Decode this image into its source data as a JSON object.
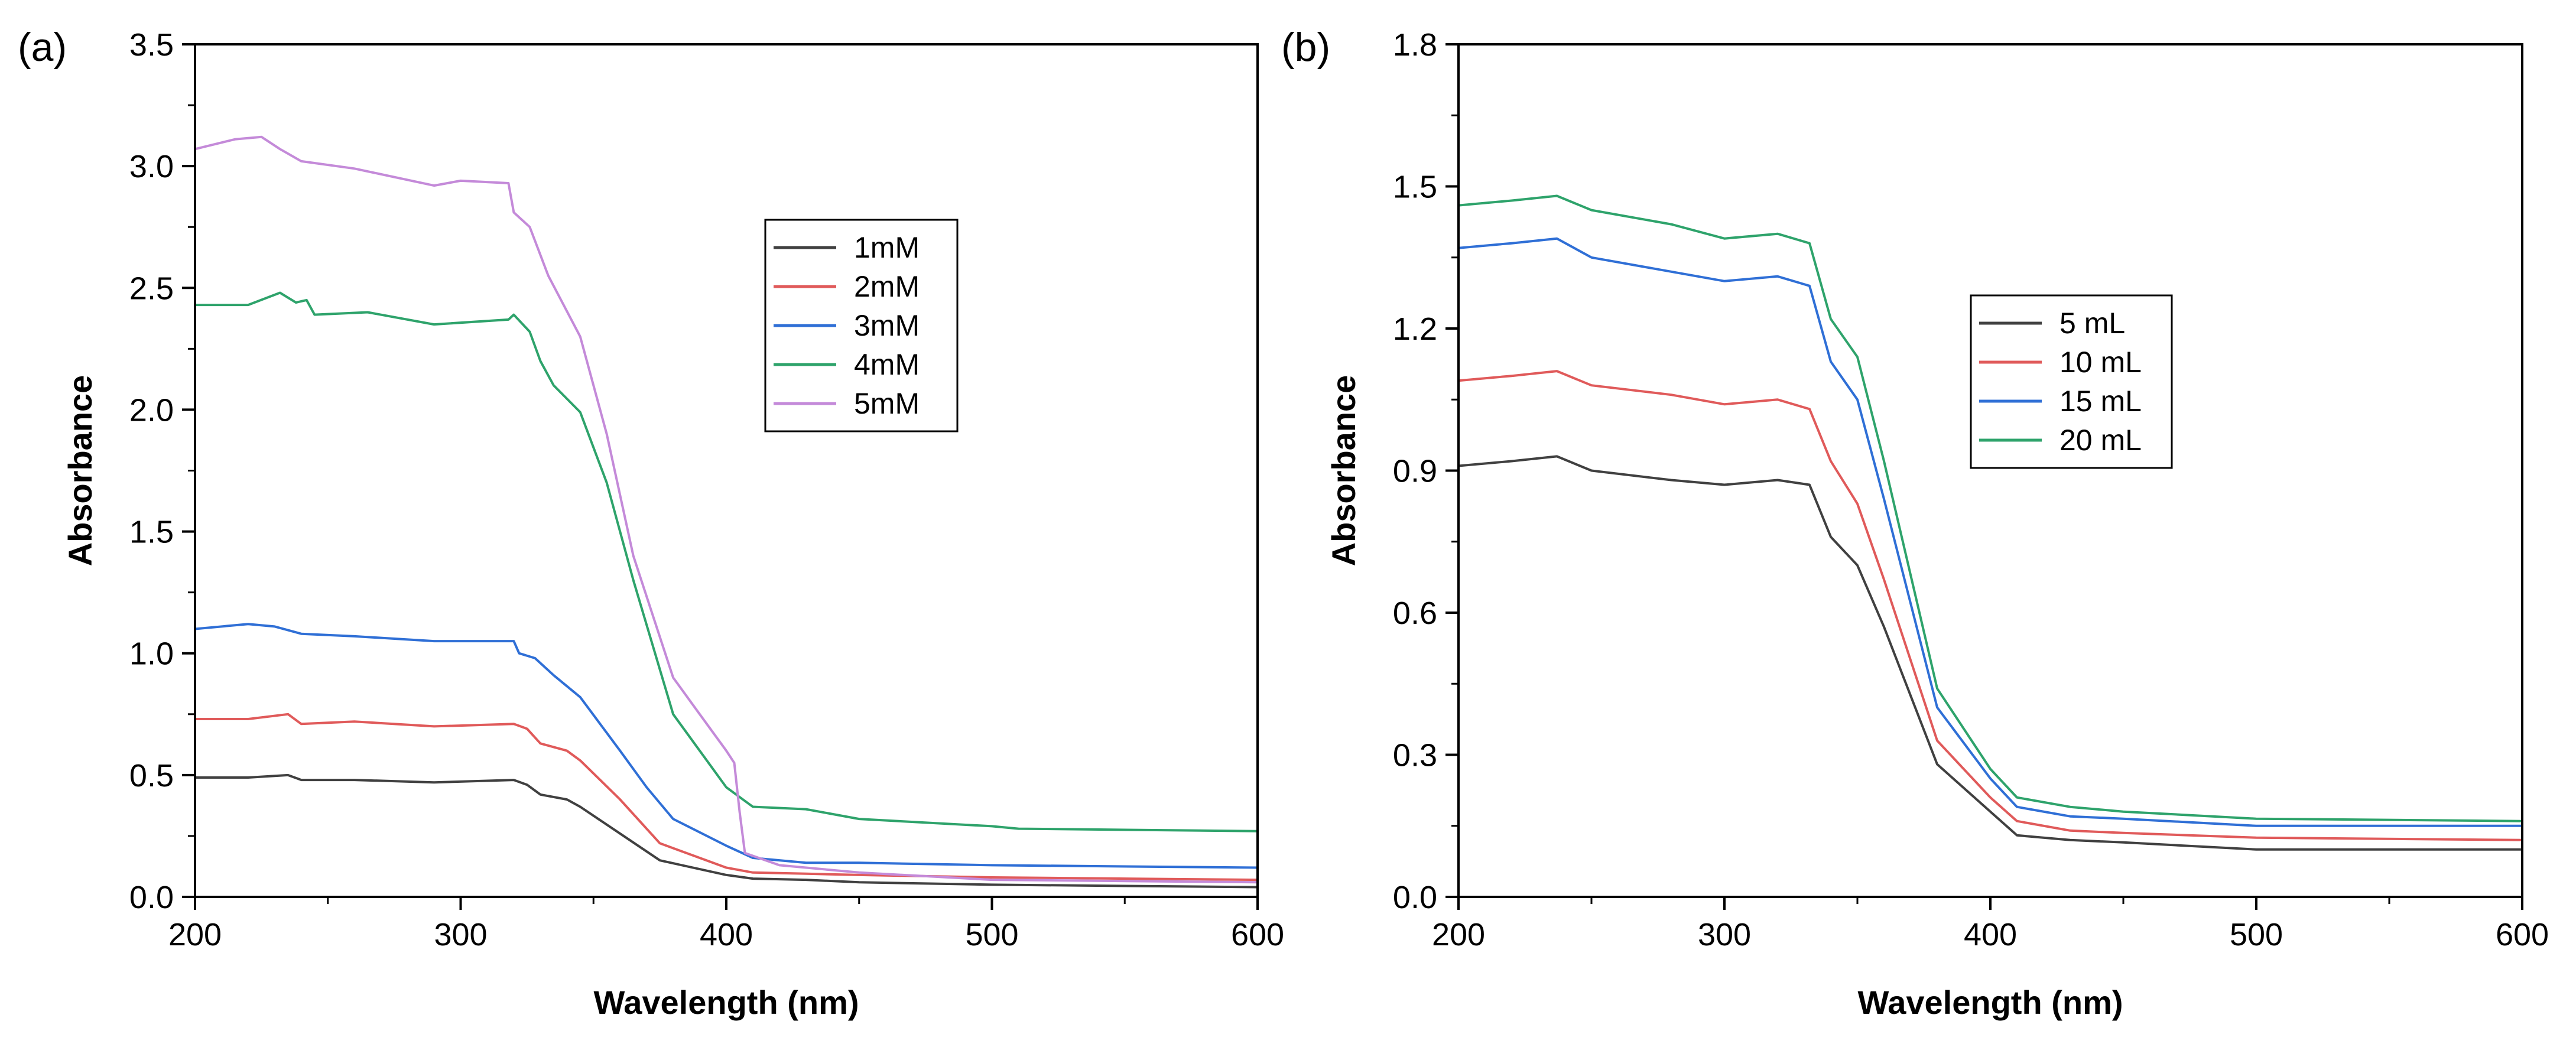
{
  "chart_data": [
    {
      "type": "line",
      "panel_label": "(a)",
      "xlabel": "Wavelength (nm)",
      "ylabel": "Absorbance",
      "xlim": [
        200,
        600
      ],
      "ylim": [
        0,
        3.5
      ],
      "xticks": [
        200,
        300,
        400,
        500,
        600
      ],
      "xtick_labels": [
        "200",
        "300",
        "400",
        "500",
        "600"
      ],
      "yticks": [
        0,
        0.5,
        1.0,
        1.5,
        2.0,
        2.5,
        3.0,
        3.5
      ],
      "ytick_labels": [
        "0.0",
        "0.5",
        "1.0",
        "1.5",
        "2.0",
        "2.5",
        "3.0",
        "3.5"
      ],
      "legend_position": "upper-center-right",
      "series": [
        {
          "name": "1mM",
          "color": "#404040",
          "points": [
            [
              200,
              0.49
            ],
            [
              220,
              0.49
            ],
            [
              235,
              0.5
            ],
            [
              240,
              0.48
            ],
            [
              260,
              0.48
            ],
            [
              290,
              0.47
            ],
            [
              320,
              0.48
            ],
            [
              325,
              0.46
            ],
            [
              330,
              0.42
            ],
            [
              340,
              0.4
            ],
            [
              345,
              0.37
            ],
            [
              360,
              0.26
            ],
            [
              375,
              0.15
            ],
            [
              400,
              0.09
            ],
            [
              410,
              0.075
            ],
            [
              430,
              0.07
            ],
            [
              450,
              0.06
            ],
            [
              500,
              0.05
            ],
            [
              600,
              0.04
            ]
          ]
        },
        {
          "name": "2mM",
          "color": "#e05a5a",
          "points": [
            [
              200,
              0.73
            ],
            [
              220,
              0.73
            ],
            [
              235,
              0.75
            ],
            [
              240,
              0.71
            ],
            [
              260,
              0.72
            ],
            [
              290,
              0.7
            ],
            [
              320,
              0.71
            ],
            [
              325,
              0.69
            ],
            [
              330,
              0.63
            ],
            [
              340,
              0.6
            ],
            [
              345,
              0.56
            ],
            [
              360,
              0.4
            ],
            [
              375,
              0.22
            ],
            [
              400,
              0.12
            ],
            [
              410,
              0.1
            ],
            [
              430,
              0.095
            ],
            [
              450,
              0.09
            ],
            [
              500,
              0.08
            ],
            [
              600,
              0.07
            ]
          ]
        },
        {
          "name": "3mM",
          "color": "#2f6fd6",
          "points": [
            [
              200,
              1.1
            ],
            [
              220,
              1.12
            ],
            [
              230,
              1.11
            ],
            [
              240,
              1.08
            ],
            [
              260,
              1.07
            ],
            [
              290,
              1.05
            ],
            [
              320,
              1.05
            ],
            [
              322,
              1.0
            ],
            [
              328,
              0.98
            ],
            [
              335,
              0.91
            ],
            [
              345,
              0.82
            ],
            [
              360,
              0.6
            ],
            [
              370,
              0.45
            ],
            [
              380,
              0.32
            ],
            [
              400,
              0.21
            ],
            [
              410,
              0.16
            ],
            [
              430,
              0.14
            ],
            [
              450,
              0.14
            ],
            [
              500,
              0.13
            ],
            [
              600,
              0.12
            ]
          ]
        },
        {
          "name": "4mM",
          "color": "#2ea36b",
          "points": [
            [
              200,
              2.43
            ],
            [
              220,
              2.43
            ],
            [
              232,
              2.48
            ],
            [
              238,
              2.44
            ],
            [
              242,
              2.45
            ],
            [
              245,
              2.39
            ],
            [
              265,
              2.4
            ],
            [
              290,
              2.35
            ],
            [
              318,
              2.37
            ],
            [
              320,
              2.39
            ],
            [
              326,
              2.32
            ],
            [
              330,
              2.2
            ],
            [
              335,
              2.1
            ],
            [
              345,
              1.99
            ],
            [
              355,
              1.7
            ],
            [
              365,
              1.3
            ],
            [
              380,
              0.75
            ],
            [
              400,
              0.45
            ],
            [
              410,
              0.37
            ],
            [
              430,
              0.36
            ],
            [
              450,
              0.32
            ],
            [
              500,
              0.29
            ],
            [
              510,
              0.28
            ],
            [
              600,
              0.27
            ]
          ]
        },
        {
          "name": "5mM",
          "color": "#c48ad9",
          "points": [
            [
              200,
              3.07
            ],
            [
              215,
              3.11
            ],
            [
              225,
              3.12
            ],
            [
              232,
              3.07
            ],
            [
              240,
              3.02
            ],
            [
              260,
              2.99
            ],
            [
              290,
              2.92
            ],
            [
              300,
              2.94
            ],
            [
              318,
              2.93
            ],
            [
              320,
              2.81
            ],
            [
              326,
              2.75
            ],
            [
              333,
              2.55
            ],
            [
              345,
              2.3
            ],
            [
              355,
              1.9
            ],
            [
              365,
              1.4
            ],
            [
              380,
              0.9
            ],
            [
              390,
              0.75
            ],
            [
              400,
              0.6
            ],
            [
              403,
              0.55
            ],
            [
              405,
              0.35
            ],
            [
              407,
              0.18
            ],
            [
              420,
              0.13
            ],
            [
              450,
              0.1
            ],
            [
              500,
              0.07
            ],
            [
              600,
              0.06
            ]
          ]
        }
      ]
    },
    {
      "type": "line",
      "panel_label": "(b)",
      "xlabel": "Wavelength (nm)",
      "ylabel": "Absorbance",
      "xlim": [
        200,
        600
      ],
      "ylim": [
        0,
        1.8
      ],
      "xticks": [
        200,
        300,
        400,
        500,
        600
      ],
      "xtick_labels": [
        "200",
        "300",
        "400",
        "500",
        "600"
      ],
      "yticks": [
        0,
        0.3,
        0.6,
        0.9,
        1.2,
        1.5,
        1.8
      ],
      "ytick_labels": [
        "0.0",
        "0.3",
        "0.6",
        "0.9",
        "1.2",
        "1.5",
        "1.8"
      ],
      "legend_position": "center-right",
      "series": [
        {
          "name": "5 mL",
          "color": "#404040",
          "points": [
            [
              200,
              0.91
            ],
            [
              220,
              0.92
            ],
            [
              237,
              0.93
            ],
            [
              250,
              0.9
            ],
            [
              280,
              0.88
            ],
            [
              300,
              0.87
            ],
            [
              320,
              0.88
            ],
            [
              332,
              0.87
            ],
            [
              340,
              0.76
            ],
            [
              350,
              0.7
            ],
            [
              360,
              0.57
            ],
            [
              380,
              0.28
            ],
            [
              400,
              0.18
            ],
            [
              410,
              0.13
            ],
            [
              430,
              0.12
            ],
            [
              450,
              0.115
            ],
            [
              500,
              0.1
            ],
            [
              600,
              0.1
            ]
          ]
        },
        {
          "name": "10 mL",
          "color": "#e05a5a",
          "points": [
            [
              200,
              1.09
            ],
            [
              220,
              1.1
            ],
            [
              237,
              1.11
            ],
            [
              250,
              1.08
            ],
            [
              280,
              1.06
            ],
            [
              300,
              1.04
            ],
            [
              320,
              1.05
            ],
            [
              332,
              1.03
            ],
            [
              340,
              0.92
            ],
            [
              350,
              0.83
            ],
            [
              360,
              0.67
            ],
            [
              380,
              0.33
            ],
            [
              400,
              0.21
            ],
            [
              410,
              0.16
            ],
            [
              430,
              0.14
            ],
            [
              450,
              0.135
            ],
            [
              500,
              0.125
            ],
            [
              600,
              0.12
            ]
          ]
        },
        {
          "name": "15 mL",
          "color": "#2f6fd6",
          "points": [
            [
              200,
              1.37
            ],
            [
              220,
              1.38
            ],
            [
              237,
              1.39
            ],
            [
              250,
              1.35
            ],
            [
              280,
              1.32
            ],
            [
              300,
              1.3
            ],
            [
              320,
              1.31
            ],
            [
              332,
              1.29
            ],
            [
              340,
              1.13
            ],
            [
              350,
              1.05
            ],
            [
              360,
              0.84
            ],
            [
              380,
              0.4
            ],
            [
              400,
              0.25
            ],
            [
              410,
              0.19
            ],
            [
              430,
              0.17
            ],
            [
              450,
              0.165
            ],
            [
              500,
              0.15
            ],
            [
              600,
              0.15
            ]
          ]
        },
        {
          "name": "20 mL",
          "color": "#2ea36b",
          "points": [
            [
              200,
              1.46
            ],
            [
              220,
              1.47
            ],
            [
              237,
              1.48
            ],
            [
              250,
              1.45
            ],
            [
              280,
              1.42
            ],
            [
              300,
              1.39
            ],
            [
              320,
              1.4
            ],
            [
              332,
              1.38
            ],
            [
              340,
              1.22
            ],
            [
              350,
              1.14
            ],
            [
              360,
              0.92
            ],
            [
              380,
              0.44
            ],
            [
              400,
              0.27
            ],
            [
              410,
              0.21
            ],
            [
              430,
              0.19
            ],
            [
              450,
              0.18
            ],
            [
              500,
              0.165
            ],
            [
              600,
              0.16
            ]
          ]
        }
      ]
    }
  ]
}
